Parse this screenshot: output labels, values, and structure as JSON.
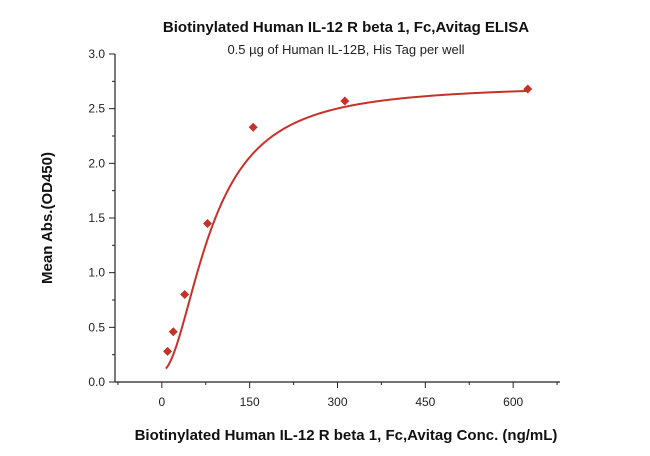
{
  "chart_data": {
    "type": "scatter",
    "title": "Biotinylated Human IL-12 R beta 1, Fc,Avitag ELISA",
    "subtitle": "0.5 µg of Human IL-12B, His Tag per well",
    "xlabel": "Biotinylated Human IL-12 R beta 1, Fc,Avitag Conc. (ng/mL)",
    "ylabel": "Mean Abs.(OD450)",
    "xlim": [
      -80,
      680
    ],
    "ylim": [
      0,
      3.0
    ],
    "x_ticks": [
      0,
      150,
      300,
      450,
      600
    ],
    "y_ticks": [
      0.0,
      0.5,
      1.0,
      1.5,
      2.0,
      2.5,
      3.0
    ],
    "x_tick_labels": [
      "0",
      "150",
      "300",
      "450",
      "600"
    ],
    "y_tick_labels": [
      "0.0",
      "0.5",
      "1.0",
      "1.5",
      "2.0",
      "2.5",
      "3.0"
    ],
    "grid": false,
    "legend": "none",
    "color": "#c8302a",
    "series": [
      {
        "x": [
          9.77,
          19.5,
          39,
          78,
          156,
          312.5,
          625
        ],
        "y": [
          0.28,
          0.46,
          0.8,
          1.45,
          2.33,
          2.57,
          2.68
        ]
      }
    ]
  }
}
